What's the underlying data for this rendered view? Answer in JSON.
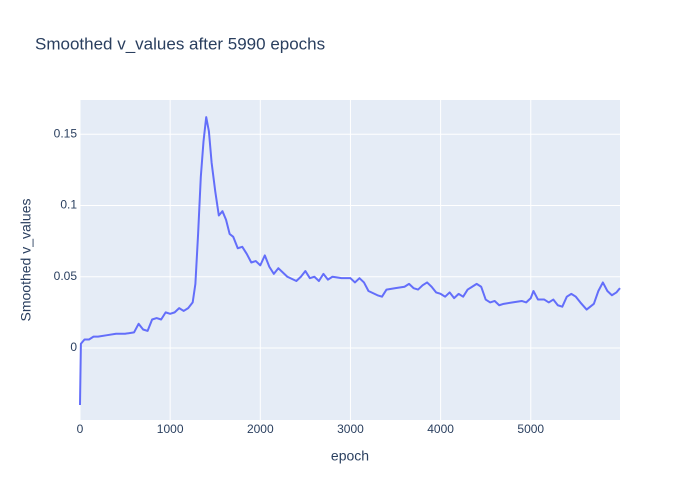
{
  "chart_data": {
    "type": "line",
    "title": "Smoothed v_values after 5990 epochs",
    "x_label": "epoch",
    "y_label": "Smoothed v_values",
    "x": [
      0,
      10,
      50,
      100,
      150,
      200,
      300,
      400,
      500,
      600,
      650,
      700,
      750,
      800,
      850,
      900,
      950,
      1000,
      1050,
      1100,
      1150,
      1200,
      1250,
      1280,
      1310,
      1340,
      1370,
      1400,
      1430,
      1460,
      1500,
      1540,
      1580,
      1620,
      1660,
      1700,
      1750,
      1800,
      1850,
      1900,
      1950,
      2000,
      2050,
      2100,
      2150,
      2200,
      2250,
      2300,
      2400,
      2450,
      2500,
      2550,
      2600,
      2650,
      2700,
      2750,
      2800,
      2900,
      3000,
      3050,
      3100,
      3150,
      3200,
      3300,
      3350,
      3400,
      3500,
      3600,
      3650,
      3700,
      3750,
      3800,
      3850,
      3900,
      3950,
      4000,
      4050,
      4100,
      4150,
      4200,
      4250,
      4300,
      4350,
      4400,
      4450,
      4500,
      4550,
      4600,
      4650,
      4700,
      4800,
      4900,
      4950,
      5000,
      5030,
      5080,
      5150,
      5200,
      5250,
      5300,
      5350,
      5400,
      5450,
      5500,
      5550,
      5620,
      5700,
      5750,
      5800,
      5850,
      5900,
      5950,
      5990
    ],
    "series": [
      {
        "name": "v_values",
        "color": "#636efa",
        "values": [
          -0.04,
          0.003,
          0.006,
          0.006,
          0.008,
          0.008,
          0.009,
          0.01,
          0.01,
          0.011,
          0.017,
          0.013,
          0.012,
          0.02,
          0.021,
          0.02,
          0.025,
          0.024,
          0.025,
          0.028,
          0.026,
          0.028,
          0.032,
          0.045,
          0.08,
          0.12,
          0.145,
          0.162,
          0.152,
          0.13,
          0.11,
          0.093,
          0.096,
          0.09,
          0.08,
          0.078,
          0.07,
          0.071,
          0.066,
          0.06,
          0.061,
          0.058,
          0.065,
          0.057,
          0.052,
          0.056,
          0.053,
          0.05,
          0.047,
          0.05,
          0.054,
          0.049,
          0.05,
          0.047,
          0.052,
          0.048,
          0.05,
          0.049,
          0.049,
          0.046,
          0.049,
          0.046,
          0.04,
          0.037,
          0.036,
          0.041,
          0.042,
          0.043,
          0.045,
          0.042,
          0.041,
          0.044,
          0.046,
          0.043,
          0.039,
          0.038,
          0.036,
          0.039,
          0.035,
          0.038,
          0.036,
          0.041,
          0.043,
          0.045,
          0.043,
          0.034,
          0.032,
          0.033,
          0.03,
          0.031,
          0.032,
          0.033,
          0.032,
          0.035,
          0.04,
          0.034,
          0.034,
          0.032,
          0.034,
          0.03,
          0.029,
          0.036,
          0.038,
          0.036,
          0.032,
          0.027,
          0.031,
          0.04,
          0.046,
          0.04,
          0.037,
          0.039,
          0.042
        ]
      }
    ],
    "xlim": [
      0,
      5990
    ],
    "ylim": [
      -0.0505,
      0.174
    ],
    "xticks": [
      0,
      1000,
      2000,
      3000,
      4000,
      5000
    ],
    "yticks": [
      0,
      0.05,
      0.1,
      0.15
    ],
    "grid": true
  }
}
